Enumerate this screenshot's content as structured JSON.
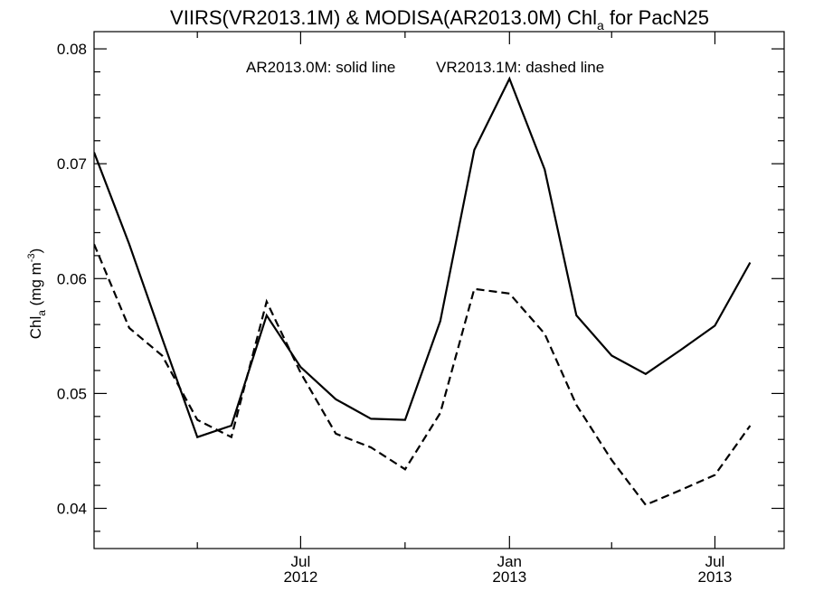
{
  "chart_data": {
    "type": "line",
    "title": {
      "prefix": "VIIRS(VR2013.1M) & MODISA(AR2013.0M)  Chl",
      "subscript": "a",
      "suffix": " for PacN25"
    },
    "ylabel": {
      "prefix": "Chl",
      "subscript": "a",
      "middle": " (mg m",
      "superscript": "-3",
      "suffix": ")"
    },
    "annotation": {
      "left": "AR2013.0M: solid line",
      "right": "VR2013.1M: dashed line"
    },
    "xlim": [
      "2012-01-01",
      "2013-08-31"
    ],
    "ylim": [
      0.0365,
      0.0815
    ],
    "yticks": [
      {
        "value": 0.04,
        "label": "0.04"
      },
      {
        "value": 0.05,
        "label": "0.05"
      },
      {
        "value": 0.06,
        "label": "0.06"
      },
      {
        "value": 0.07,
        "label": "0.07"
      },
      {
        "value": 0.08,
        "label": "0.08"
      }
    ],
    "y_minor_step": 0.002,
    "xticks": [
      {
        "date": "2012-07-01",
        "label": "Jul",
        "year": "2012"
      },
      {
        "date": "2013-01-01",
        "label": "Jan",
        "year": "2013"
      },
      {
        "date": "2013-07-01",
        "label": "Jul",
        "year": "2013"
      }
    ],
    "x_minor_ticks": [
      "2012-04-01",
      "2012-10-01",
      "2013-04-01"
    ],
    "grid": false,
    "legend": "none",
    "series": [
      {
        "style": "solid",
        "points": [
          [
            "2012-01-01",
            0.071
          ],
          [
            "2012-02-01",
            0.063
          ],
          [
            "2012-03-01",
            0.0548
          ],
          [
            "2012-04-01",
            0.0462
          ],
          [
            "2012-05-01",
            0.0472
          ],
          [
            "2012-06-01",
            0.0568
          ],
          [
            "2012-07-01",
            0.0523
          ],
          [
            "2012-08-01",
            0.0495
          ],
          [
            "2012-09-01",
            0.0478
          ],
          [
            "2012-10-01",
            0.0477
          ],
          [
            "2012-11-01",
            0.0563
          ],
          [
            "2012-12-01",
            0.0712
          ],
          [
            "2013-01-01",
            0.0774
          ],
          [
            "2013-02-01",
            0.0695
          ],
          [
            "2013-03-01",
            0.0568
          ],
          [
            "2013-04-01",
            0.0533
          ],
          [
            "2013-05-01",
            0.0517
          ],
          [
            "2013-06-01",
            0.0538
          ],
          [
            "2013-07-01",
            0.0559
          ],
          [
            "2013-08-01",
            0.0614
          ]
        ]
      },
      {
        "style": "dashed",
        "points": [
          [
            "2012-01-01",
            0.063
          ],
          [
            "2012-02-01",
            0.0557
          ],
          [
            "2012-03-01",
            0.0533
          ],
          [
            "2012-04-01",
            0.0477
          ],
          [
            "2012-05-01",
            0.0462
          ],
          [
            "2012-06-01",
            0.058
          ],
          [
            "2012-07-01",
            0.0518
          ],
          [
            "2012-08-01",
            0.0465
          ],
          [
            "2012-09-01",
            0.0453
          ],
          [
            "2012-10-01",
            0.0434
          ],
          [
            "2012-11-01",
            0.0483
          ],
          [
            "2012-12-01",
            0.0591
          ],
          [
            "2013-01-01",
            0.0587
          ],
          [
            "2013-02-01",
            0.0552
          ],
          [
            "2013-03-01",
            0.049
          ],
          [
            "2013-04-01",
            0.0442
          ],
          [
            "2013-05-01",
            0.0403
          ],
          [
            "2013-06-01",
            0.0416
          ],
          [
            "2013-07-01",
            0.0429
          ],
          [
            "2013-08-01",
            0.0472
          ]
        ]
      }
    ]
  }
}
